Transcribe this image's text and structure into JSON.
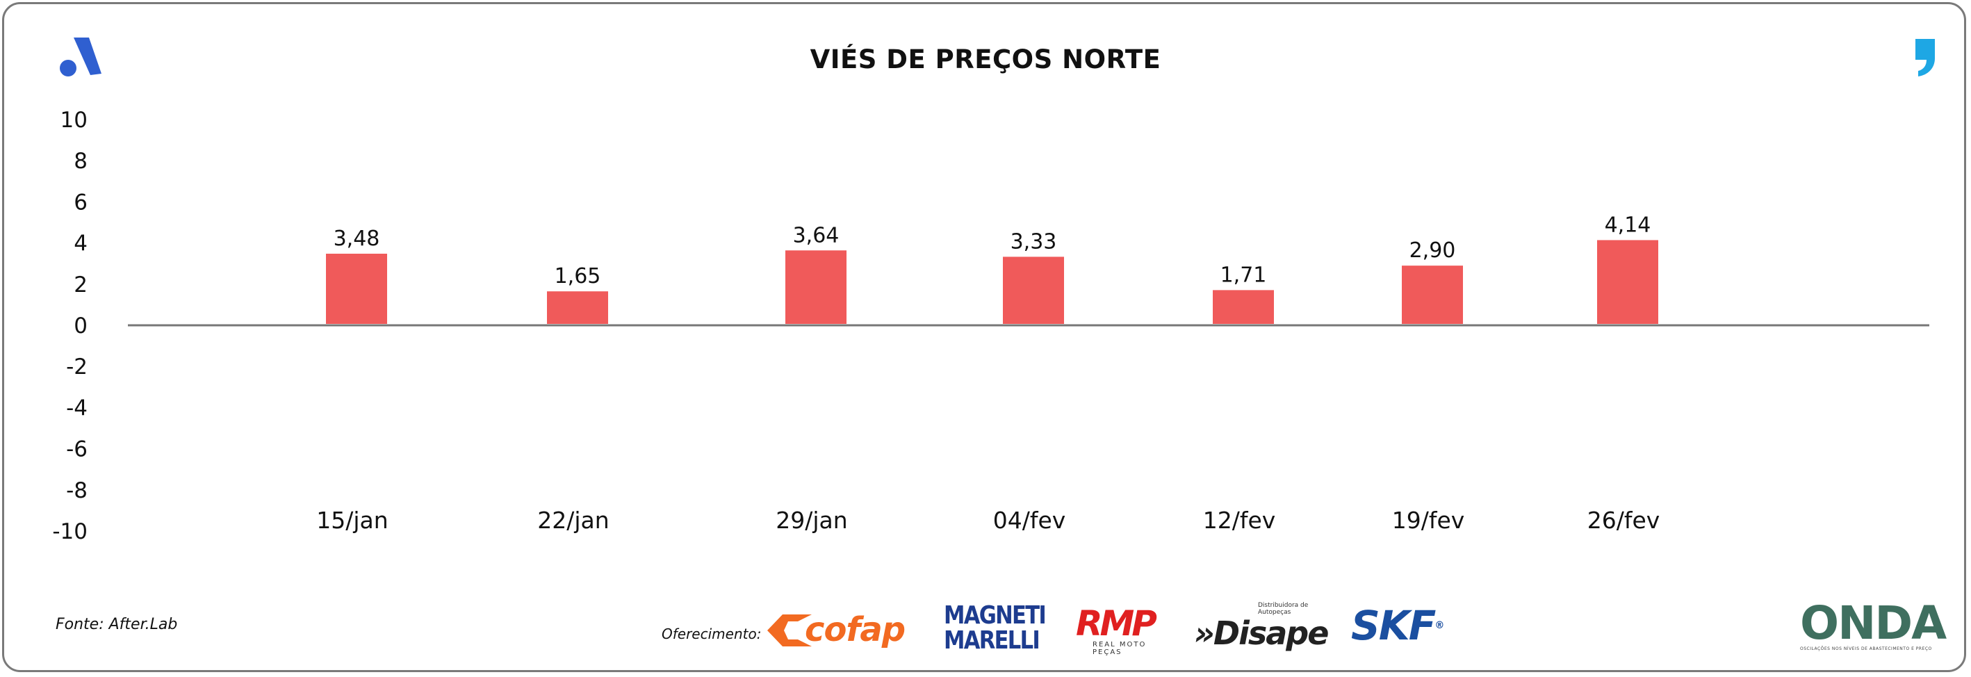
{
  "header": {
    "title": "VIÉS DE PREÇOS NORTE"
  },
  "footer": {
    "source": "Fonte: After.Lab",
    "sponsor_label": "Oferecimento:"
  },
  "sponsors": {
    "cofap": "cofap",
    "magneti_line1": "MAGNETI",
    "magneti_line2": "MARELLI",
    "rmp": "RMP",
    "rmp_sub": "REAL MOTO PEÇAS",
    "disape_sub": "Distribuidora de Autopeças",
    "disape": "»Disape",
    "skf": "SKF",
    "skf_mark": "®",
    "onda": "ONDA",
    "onda_sub": "OSCILAÇÕES NOS NÍVEIS DE ABASTECIMENTO E PREÇO"
  },
  "colors": {
    "bar": "#f05a5a",
    "axis": "#777777",
    "brand_blue": "#2f5fd0",
    "brand_cyan": "#1ea7e4"
  },
  "chart_data": {
    "type": "bar",
    "title": "VIÉS DE PREÇOS NORTE",
    "categories": [
      "15/jan",
      "22/jan",
      "29/jan",
      "04/fev",
      "12/fev",
      "19/fev",
      "26/fev"
    ],
    "values": [
      3.48,
      1.65,
      3.64,
      3.33,
      1.71,
      2.9,
      4.14
    ],
    "value_labels": [
      "3,48",
      "1,65",
      "3,64",
      "3,33",
      "1,71",
      "2,90",
      "4,14"
    ],
    "y_ticks": [
      10,
      8,
      6,
      4,
      2,
      0,
      -2,
      -4,
      -6,
      -8,
      -10
    ],
    "ylim": [
      -10,
      10
    ],
    "xlabel": "",
    "ylabel": "",
    "grid": false,
    "legend": "none"
  }
}
